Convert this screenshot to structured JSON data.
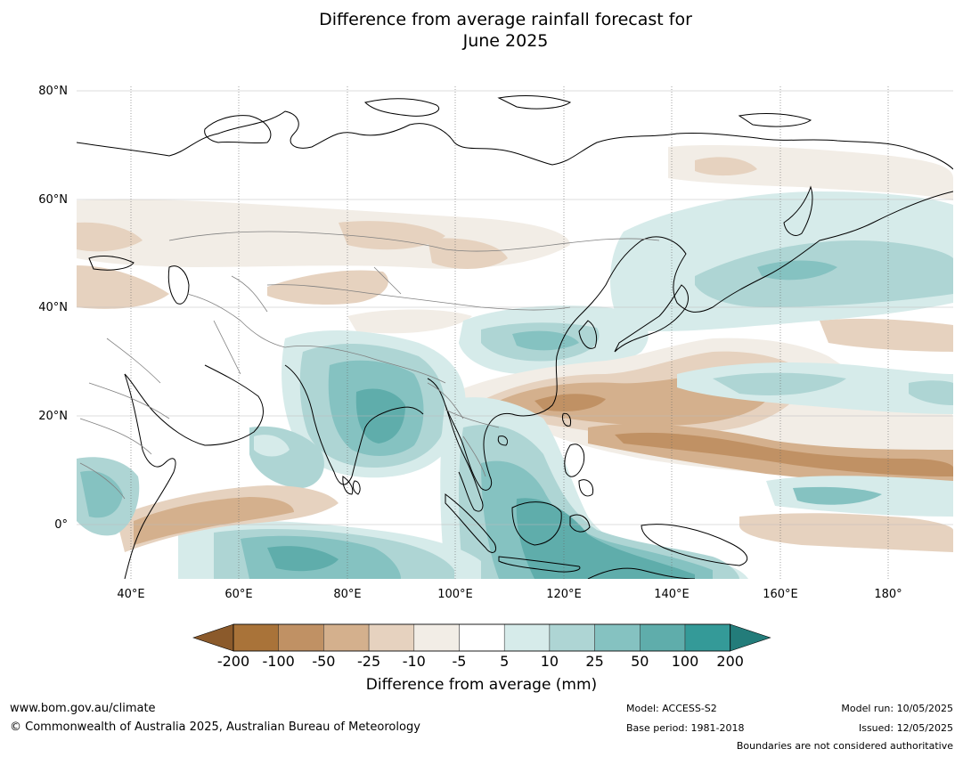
{
  "title": {
    "line1": "Difference from average rainfall forecast for",
    "line2": "June 2025"
  },
  "map": {
    "lat_labels": [
      "80°N",
      "60°N",
      "40°N",
      "20°N",
      "0°"
    ],
    "lon_labels": [
      "40°E",
      "60°E",
      "80°E",
      "100°E",
      "120°E",
      "140°E",
      "160°E",
      "180°"
    ],
    "colors": {
      "coastline": "#000000",
      "borders": "#808080",
      "gridline": "#bbbbbb"
    }
  },
  "colorbar": {
    "ticks": [
      "-200",
      "-100",
      "-50",
      "-25",
      "-10",
      "-5",
      "5",
      "10",
      "25",
      "50",
      "100",
      "200"
    ],
    "colors": [
      "#8b5a2b",
      "#a97339",
      "#c09164",
      "#d4b08d",
      "#e6d2bf",
      "#f2ede6",
      "#ffffff",
      "#d6ebea",
      "#aed5d4",
      "#85c2c1",
      "#5fadab",
      "#349a98",
      "#237c7a"
    ],
    "label": "Difference from average (mm)"
  },
  "footer": {
    "website": "www.bom.gov.au/climate",
    "copyright": "© Commonwealth of Australia 2025, Australian Bureau of Meteorology",
    "model": "Model: ACCESS-S2",
    "base_period": "Base period: 1981-2018",
    "model_run": "Model run: 10/05/2025",
    "issued": "Issued: 12/05/2025",
    "disclaimer": "Boundaries are not considered authoritative"
  }
}
